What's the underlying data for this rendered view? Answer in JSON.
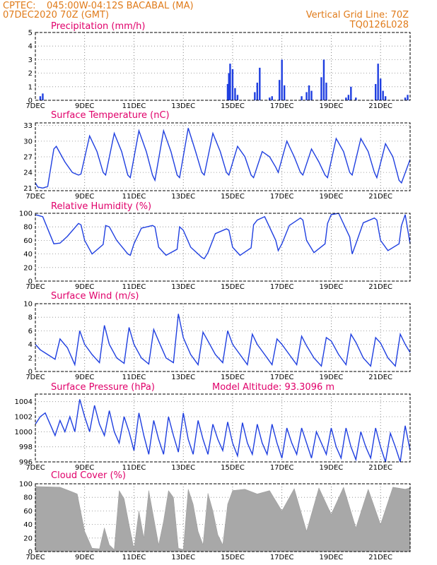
{
  "header": {
    "source": "CPTEC:",
    "location": "045:00W-04:12S   BACABAL (MA)",
    "run": "07DEC2020 70Z (GMT)",
    "grid_note": "Vertical Grid Line: 70Z",
    "code": "TQ0126L028"
  },
  "colors": {
    "header": "#e07b1a",
    "title": "#e0006a",
    "series": "#1f3fe0",
    "cloud": "#a8a8a8"
  },
  "chart_data": [
    {
      "type": "bar",
      "title": "Precipitation (mm/h)",
      "ylim": [
        0,
        5
      ],
      "yticks": [
        0,
        1,
        2,
        3,
        4,
        5
      ],
      "xlim": [
        7,
        22.2
      ],
      "xticks": [
        "7DEC",
        "9DEC",
        "11DEC",
        "13DEC",
        "15DEC",
        "17DEC",
        "19DEC",
        "21DEC"
      ],
      "x": [
        7.2,
        7.3,
        14.8,
        14.85,
        14.9,
        15.0,
        15.1,
        15.2,
        15.9,
        16.0,
        16.1,
        16.5,
        16.6,
        16.9,
        17.0,
        17.1,
        17.8,
        18.0,
        18.1,
        18.2,
        18.6,
        18.7,
        18.8,
        19.6,
        19.7,
        19.8,
        20.0,
        20.8,
        20.9,
        21.0,
        21.1,
        21.2,
        22.0,
        22.1
      ],
      "values": [
        0.3,
        0.5,
        1.2,
        2.0,
        2.7,
        2.3,
        0.9,
        0.4,
        0.6,
        1.3,
        2.4,
        0.2,
        0.3,
        1.5,
        3.0,
        1.1,
        0.3,
        0.6,
        1.1,
        0.7,
        1.7,
        3.0,
        1.3,
        0.2,
        0.4,
        1.0,
        0.2,
        1.2,
        2.7,
        1.6,
        0.7,
        0.3,
        0.2,
        0.4
      ]
    },
    {
      "type": "line",
      "title": "Surface Temperature (nC)",
      "ylim": [
        20.5,
        33.5
      ],
      "yticks": [
        21,
        24,
        27,
        30,
        33
      ],
      "xlim": [
        7,
        22.2
      ],
      "xticks": [
        "7DEC",
        "9DEC",
        "11DEC",
        "13DEC",
        "15DEC",
        "17DEC",
        "19DEC",
        "21DEC"
      ],
      "x": [
        7.0,
        7.1,
        7.3,
        7.5,
        7.75,
        7.85,
        8.2,
        8.5,
        8.75,
        8.85,
        9.2,
        9.5,
        9.75,
        9.85,
        10.2,
        10.5,
        10.75,
        10.85,
        11.2,
        11.5,
        11.75,
        11.85,
        12.2,
        12.5,
        12.75,
        12.85,
        13.2,
        13.5,
        13.75,
        13.85,
        14.2,
        14.5,
        14.75,
        14.85,
        15.2,
        15.5,
        15.75,
        15.85,
        16.2,
        16.5,
        16.75,
        16.85,
        17.2,
        17.5,
        17.75,
        17.85,
        18.2,
        18.5,
        18.75,
        18.85,
        19.2,
        19.5,
        19.75,
        19.85,
        20.2,
        20.5,
        20.75,
        20.85,
        21.2,
        21.5,
        21.75,
        21.85,
        22.2
      ],
      "values": [
        22,
        21.2,
        21,
        21.3,
        28.5,
        29,
        26,
        24,
        23.5,
        23.7,
        31,
        28,
        24,
        23.5,
        31.5,
        28,
        23.5,
        23,
        32,
        28,
        23.5,
        22.5,
        32,
        28,
        23.5,
        23,
        32.5,
        28,
        24,
        23.5,
        31.5,
        28,
        24,
        23.5,
        29,
        27,
        23.5,
        23,
        28,
        27,
        25,
        24,
        30,
        27,
        24,
        23.5,
        28.5,
        26,
        23.5,
        23,
        30.5,
        28,
        24,
        23.5,
        30.5,
        28,
        24,
        23,
        29.5,
        27,
        22.5,
        22,
        26.5
      ]
    },
    {
      "type": "line",
      "title": "Relative Humidity (%)",
      "ylim": [
        0,
        100
      ],
      "yticks": [
        0,
        20,
        40,
        60,
        80,
        100
      ],
      "xlim": [
        7,
        22.2
      ],
      "xticks": [
        "7DEC",
        "9DEC",
        "11DEC",
        "13DEC",
        "15DEC",
        "17DEC",
        "19DEC",
        "21DEC"
      ],
      "x": [
        7.0,
        7.3,
        7.75,
        8.0,
        8.3,
        8.75,
        8.85,
        9.0,
        9.3,
        9.75,
        9.85,
        10.0,
        10.3,
        10.75,
        10.85,
        11.0,
        11.3,
        11.75,
        11.85,
        12.0,
        12.3,
        12.75,
        12.85,
        13.0,
        13.3,
        13.75,
        13.85,
        14.0,
        14.3,
        14.75,
        14.85,
        15.0,
        15.3,
        15.75,
        15.85,
        16.0,
        16.3,
        16.75,
        16.85,
        17.0,
        17.3,
        17.75,
        17.85,
        18.0,
        18.3,
        18.75,
        18.85,
        19.0,
        19.3,
        19.75,
        19.85,
        20.0,
        20.3,
        20.75,
        20.85,
        21.0,
        21.3,
        21.75,
        21.85,
        22.0,
        22.2
      ],
      "values": [
        98,
        95,
        55,
        56,
        66,
        85,
        83,
        60,
        40,
        54,
        82,
        80,
        60,
        40,
        38,
        55,
        78,
        82,
        80,
        50,
        38,
        47,
        80,
        75,
        50,
        35,
        33,
        42,
        70,
        77,
        75,
        50,
        38,
        49,
        83,
        90,
        95,
        60,
        45,
        55,
        82,
        93,
        90,
        60,
        42,
        55,
        85,
        98,
        100,
        65,
        40,
        55,
        86,
        93,
        90,
        60,
        45,
        55,
        82,
        98,
        55
      ]
    },
    {
      "type": "line",
      "title": "Surface Wind (m/s)",
      "ylim": [
        0,
        10
      ],
      "yticks": [
        0,
        2,
        4,
        6,
        8,
        10
      ],
      "xlim": [
        7,
        22.2
      ],
      "xticks": [
        "7DEC",
        "9DEC",
        "11DEC",
        "13DEC",
        "15DEC",
        "17DEC",
        "19DEC",
        "21DEC"
      ],
      "x": [
        7.0,
        7.2,
        7.5,
        7.8,
        8.0,
        8.3,
        8.6,
        8.8,
        9.0,
        9.3,
        9.6,
        9.8,
        10.0,
        10.3,
        10.6,
        10.8,
        11.0,
        11.3,
        11.6,
        11.8,
        12.0,
        12.3,
        12.6,
        12.8,
        13.0,
        13.3,
        13.6,
        13.8,
        14.0,
        14.3,
        14.6,
        14.8,
        15.0,
        15.3,
        15.6,
        15.8,
        16.0,
        16.3,
        16.6,
        16.8,
        17.0,
        17.3,
        17.6,
        17.8,
        18.0,
        18.3,
        18.6,
        18.8,
        19.0,
        19.3,
        19.6,
        19.8,
        20.0,
        20.3,
        20.6,
        20.8,
        21.0,
        21.3,
        21.6,
        21.8,
        22.0,
        22.2
      ],
      "values": [
        4.0,
        3.2,
        2.5,
        1.8,
        4.8,
        3.5,
        1.0,
        6.0,
        4.0,
        2.5,
        1.3,
        6.8,
        4.0,
        2.0,
        1.2,
        6.5,
        4.0,
        2.0,
        1.1,
        6.2,
        4.5,
        2.0,
        1.3,
        8.5,
        5.0,
        2.5,
        1.0,
        5.8,
        4.5,
        2.5,
        1.3,
        6.0,
        4.0,
        2.5,
        1.0,
        5.5,
        4.0,
        2.5,
        1.0,
        4.8,
        4.0,
        2.5,
        1.0,
        5.2,
        3.8,
        2.0,
        0.8,
        5.0,
        4.5,
        2.5,
        1.0,
        5.5,
        4.3,
        2.0,
        0.8,
        5.0,
        4.2,
        2.0,
        0.8,
        5.5,
        4.0,
        2.8
      ]
    },
    {
      "type": "line",
      "title": "Surface Pressure (hPa)",
      "annotation": "Model Altitude: 93.3096 m",
      "ylim": [
        996,
        1005
      ],
      "yticks": [
        996,
        998,
        1000,
        1002,
        1004
      ],
      "xlim": [
        7,
        22.2
      ],
      "xticks": [
        "7DEC",
        "9DEC",
        "11DEC",
        "13DEC",
        "15DEC",
        "17DEC",
        "19DEC",
        "21DEC"
      ],
      "x": [
        7.0,
        7.2,
        7.4,
        7.6,
        7.8,
        8.0,
        8.2,
        8.4,
        8.6,
        8.8,
        9.0,
        9.2,
        9.4,
        9.6,
        9.8,
        10.0,
        10.2,
        10.4,
        10.6,
        10.8,
        11.0,
        11.2,
        11.4,
        11.6,
        11.8,
        12.0,
        12.2,
        12.4,
        12.6,
        12.8,
        13.0,
        13.2,
        13.4,
        13.6,
        13.8,
        14.0,
        14.2,
        14.4,
        14.6,
        14.8,
        15.0,
        15.2,
        15.4,
        15.6,
        15.8,
        16.0,
        16.2,
        16.4,
        16.6,
        16.8,
        17.0,
        17.2,
        17.4,
        17.6,
        17.8,
        18.0,
        18.2,
        18.4,
        18.6,
        18.8,
        19.0,
        19.2,
        19.4,
        19.6,
        19.8,
        20.0,
        20.2,
        20.4,
        20.6,
        20.8,
        21.0,
        21.2,
        21.4,
        21.6,
        21.8,
        22.0,
        22.2
      ],
      "values": [
        1001,
        1002,
        1002.5,
        1001,
        999.5,
        1001.5,
        1000,
        1002,
        1000,
        1004.3,
        1002,
        1000,
        1003.5,
        1001,
        999.5,
        1002.8,
        1000,
        998.5,
        1002,
        1000,
        997.5,
        1002.5,
        999.5,
        997,
        1001.5,
        999,
        997,
        1002,
        999.5,
        997.3,
        1002.5,
        999,
        997,
        1001.5,
        999,
        997,
        1001,
        999,
        997.5,
        1001.3,
        998.5,
        996.8,
        1001.2,
        998.5,
        997,
        1001,
        998.5,
        997,
        1001,
        998.5,
        996.5,
        1000.5,
        998.5,
        997,
        1000.5,
        998.5,
        996.5,
        1000,
        998.5,
        997,
        1000.5,
        998,
        996.5,
        1000.5,
        998,
        996.3,
        1000,
        998,
        996.5,
        1000.5,
        998,
        996,
        999.8,
        998,
        996,
        1000.8,
        997.5
      ]
    },
    {
      "type": "area",
      "title": "Cloud Cover (%)",
      "ylim": [
        0,
        100
      ],
      "yticks": [
        0,
        20,
        40,
        60,
        80,
        100
      ],
      "xlim": [
        7,
        22.2
      ],
      "xticks": [
        "7DEC",
        "9DEC",
        "11DEC",
        "13DEC",
        "15DEC",
        "17DEC",
        "19DEC",
        "21DEC"
      ],
      "x": [
        7.0,
        8.0,
        8.5,
        8.7,
        9.0,
        9.3,
        9.6,
        9.8,
        10.0,
        10.2,
        10.4,
        10.6,
        10.8,
        11.0,
        11.2,
        11.4,
        11.6,
        11.8,
        12.0,
        12.2,
        12.4,
        12.6,
        12.8,
        13.0,
        13.2,
        13.4,
        13.6,
        13.8,
        14.0,
        14.2,
        14.4,
        14.6,
        14.8,
        15.0,
        15.5,
        16.0,
        16.5,
        17.0,
        17.5,
        18.0,
        18.5,
        19.0,
        19.5,
        20.0,
        20.5,
        21.0,
        21.5,
        22.0,
        22.2
      ],
      "values": [
        96,
        95,
        88,
        85,
        30,
        5,
        4,
        35,
        10,
        3,
        90,
        78,
        40,
        4,
        60,
        20,
        90,
        50,
        10,
        45,
        90,
        80,
        5,
        3,
        92,
        70,
        30,
        10,
        86,
        60,
        25,
        10,
        70,
        90,
        92,
        85,
        90,
        60,
        93,
        30,
        94,
        55,
        95,
        35,
        92,
        40,
        95,
        92,
        94
      ]
    }
  ]
}
